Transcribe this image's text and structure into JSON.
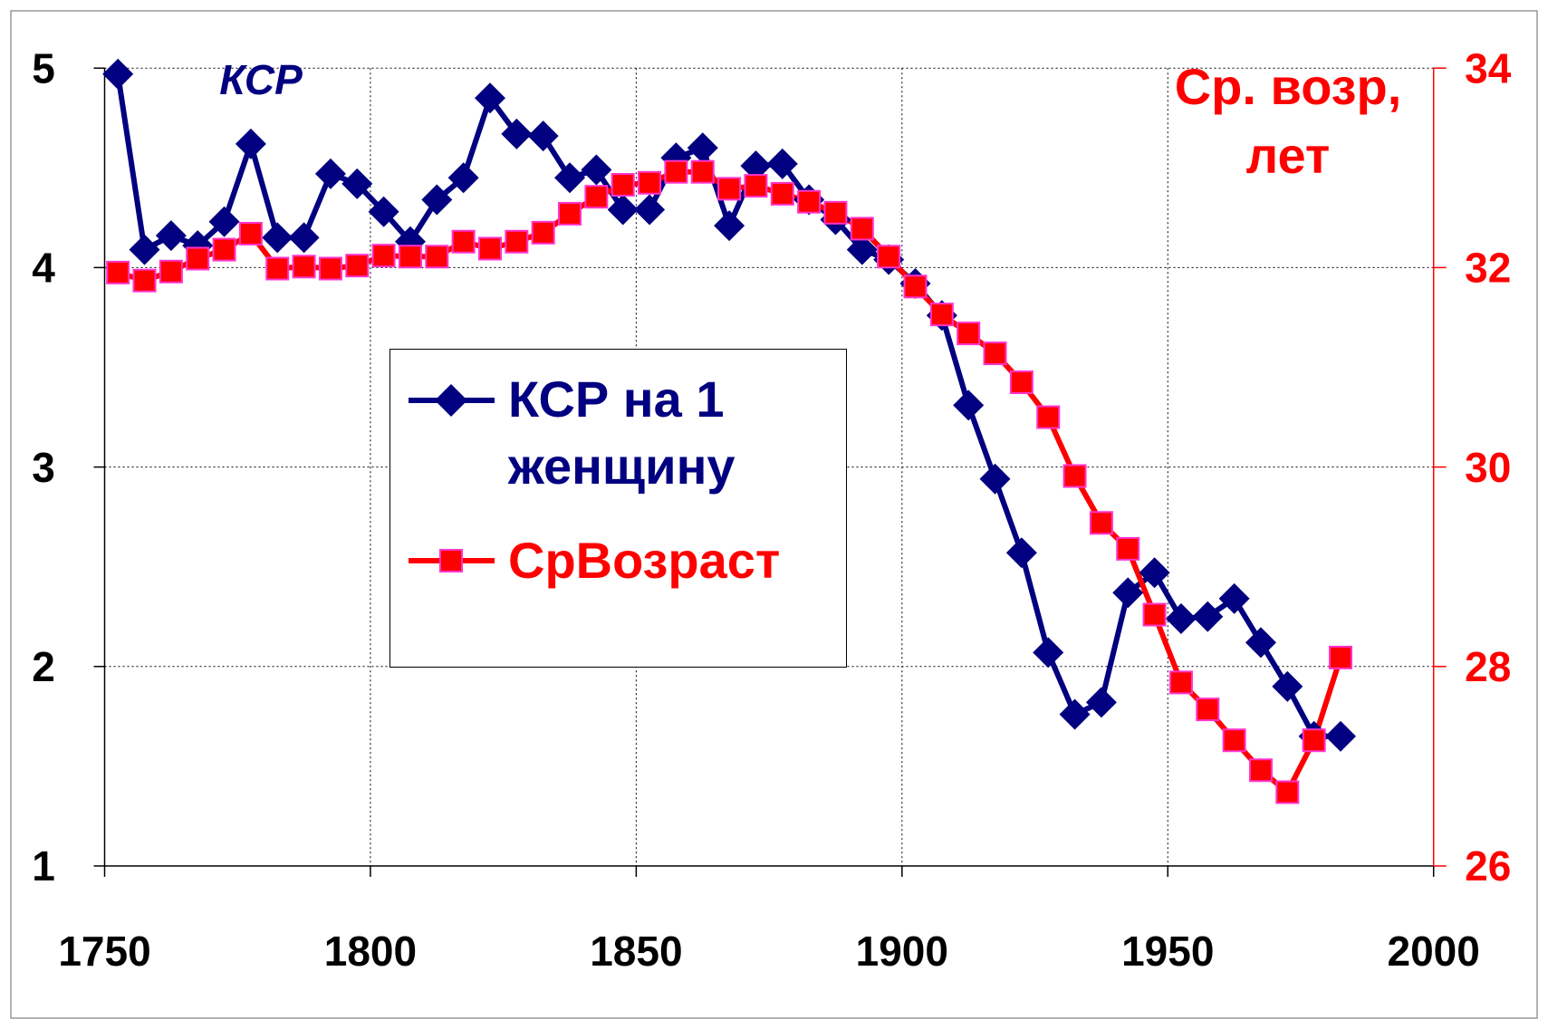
{
  "chart_data": {
    "type": "line",
    "annotations": [
      "КСР"
    ],
    "y2_label_lines": [
      "Ср. возр,",
      "лет"
    ],
    "x": [
      1752.5,
      1757.5,
      1762.5,
      1767.5,
      1772.5,
      1777.5,
      1782.5,
      1787.5,
      1792.5,
      1797.5,
      1802.5,
      1807.5,
      1812.5,
      1817.5,
      1822.5,
      1827.5,
      1832.5,
      1837.5,
      1842.5,
      1847.5,
      1852.5,
      1857.5,
      1862.5,
      1867.5,
      1872.5,
      1877.5,
      1882.5,
      1887.5,
      1892.5,
      1897.5,
      1902.5,
      1907.5,
      1912.5,
      1917.5,
      1922.5,
      1927.5,
      1932.5,
      1937.5,
      1942.5,
      1947.5,
      1952.5,
      1957.5,
      1962.5,
      1967.5,
      1972.5,
      1977.5,
      1982.5
    ],
    "series": [
      {
        "name": "КСР на 1 женщину",
        "color": "#000080",
        "marker": "diamond",
        "values": [
          4.97,
          4.09,
          4.16,
          4.11,
          4.23,
          4.62,
          4.15,
          4.15,
          4.47,
          4.42,
          4.28,
          4.13,
          4.34,
          4.45,
          4.85,
          4.67,
          4.66,
          4.45,
          4.49,
          4.29,
          4.29,
          4.55,
          4.6,
          4.21,
          4.51,
          4.52,
          4.34,
          4.24,
          4.09,
          4.04,
          3.92,
          3.76,
          3.31,
          2.94,
          2.57,
          2.07,
          1.76,
          1.82,
          2.37,
          2.47,
          2.24,
          2.25,
          2.34,
          2.12,
          1.9,
          1.65,
          1.65
        ]
      },
      {
        "name": "СрВозраст",
        "color": "#ff0000",
        "marker": "square",
        "axis": "y2",
        "values": [
          31.95,
          31.87,
          31.96,
          32.09,
          32.18,
          32.34,
          31.99,
          32.01,
          31.99,
          32.02,
          32.12,
          32.11,
          32.11,
          32.26,
          32.19,
          32.26,
          32.35,
          32.54,
          32.71,
          32.83,
          32.85,
          32.96,
          32.96,
          32.79,
          32.82,
          32.74,
          32.66,
          32.55,
          32.39,
          32.11,
          31.81,
          31.53,
          31.34,
          31.14,
          30.85,
          30.5,
          29.91,
          29.44,
          29.18,
          28.52,
          27.84,
          27.57,
          27.26,
          26.96,
          26.74,
          27.26,
          28.09
        ]
      }
    ],
    "xlim": [
      1750,
      2000
    ],
    "xticks": [
      1750,
      1800,
      1850,
      1900,
      1950,
      2000
    ],
    "ylim": [
      1,
      5
    ],
    "yticks": [
      1,
      2,
      3,
      4,
      5
    ],
    "y2lim": [
      26,
      34
    ],
    "y2ticks": [
      26,
      28,
      30,
      32,
      34
    ],
    "grid": true
  }
}
